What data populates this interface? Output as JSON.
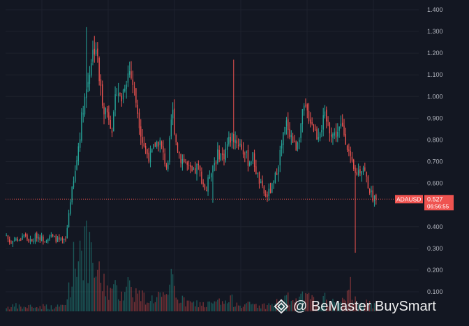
{
  "chart_data": {
    "type": "candlestick",
    "symbol": "ADAUSD",
    "last_price": "0.527",
    "countdown": "06:56:55",
    "y_ticks": [
      "1.400",
      "1.300",
      "1.200",
      "1.100",
      "1.000",
      "0.900",
      "0.800",
      "0.700",
      "0.600",
      "0.400",
      "0.300",
      "0.200",
      "0.100"
    ],
    "ylim": [
      0.05,
      1.4
    ],
    "grid": true,
    "colors": {
      "background": "#131722",
      "grid": "#1e222d",
      "up": "#26a69a",
      "down": "#ef5350",
      "price_label": "#ef5350",
      "axis_text": "#b2b5be"
    },
    "price_path": [
      0.36,
      0.32,
      0.35,
      0.33,
      0.37,
      0.34,
      0.33,
      0.36,
      0.35,
      0.34,
      0.36,
      0.35,
      0.34,
      0.33,
      0.34,
      0.52,
      0.62,
      0.78,
      0.95,
      1.05,
      1.18,
      1.25,
      1.05,
      0.95,
      0.92,
      0.85,
      1.05,
      0.98,
      1.08,
      1.12,
      1.04,
      0.92,
      0.8,
      0.74,
      0.72,
      0.78,
      0.8,
      0.72,
      0.66,
      0.95,
      0.78,
      0.72,
      0.7,
      0.66,
      0.64,
      0.68,
      0.62,
      0.56,
      0.66,
      0.7,
      0.74,
      0.72,
      0.78,
      0.82,
      0.8,
      0.78,
      0.74,
      0.7,
      0.72,
      0.64,
      0.58,
      0.54,
      0.56,
      0.6,
      0.7,
      0.8,
      0.88,
      0.82,
      0.76,
      0.84,
      0.94,
      0.92,
      0.88,
      0.82,
      0.86,
      0.9,
      0.86,
      0.82,
      0.84,
      0.86,
      0.8,
      0.7,
      0.64,
      0.66,
      0.68,
      0.6,
      0.54,
      0.527
    ],
    "volume_path": [
      0.05,
      0.04,
      0.06,
      0.05,
      0.04,
      0.05,
      0.06,
      0.04,
      0.05,
      0.06,
      0.05,
      0.04,
      0.05,
      0.06,
      0.07,
      0.35,
      0.55,
      0.7,
      0.8,
      0.65,
      0.5,
      0.45,
      0.35,
      0.3,
      0.25,
      0.2,
      0.25,
      0.2,
      0.28,
      0.3,
      0.22,
      0.18,
      0.16,
      0.14,
      0.13,
      0.15,
      0.18,
      0.14,
      0.12,
      0.4,
      0.2,
      0.12,
      0.1,
      0.09,
      0.08,
      0.09,
      0.08,
      0.07,
      0.08,
      0.09,
      0.1,
      0.09,
      0.1,
      0.12,
      0.1,
      0.09,
      0.08,
      0.07,
      0.08,
      0.07,
      0.06,
      0.06,
      0.07,
      0.08,
      0.1,
      0.12,
      0.14,
      0.12,
      0.1,
      0.12,
      0.16,
      0.14,
      0.12,
      0.1,
      0.11,
      0.13,
      0.1,
      0.09,
      0.1,
      0.11,
      0.1,
      0.3,
      0.12,
      0.1,
      0.09,
      0.08,
      0.07,
      0.06
    ]
  },
  "watermark": {
    "logo_icon": "binance-square-icon",
    "text": "@ BeMaster BuySmart"
  }
}
